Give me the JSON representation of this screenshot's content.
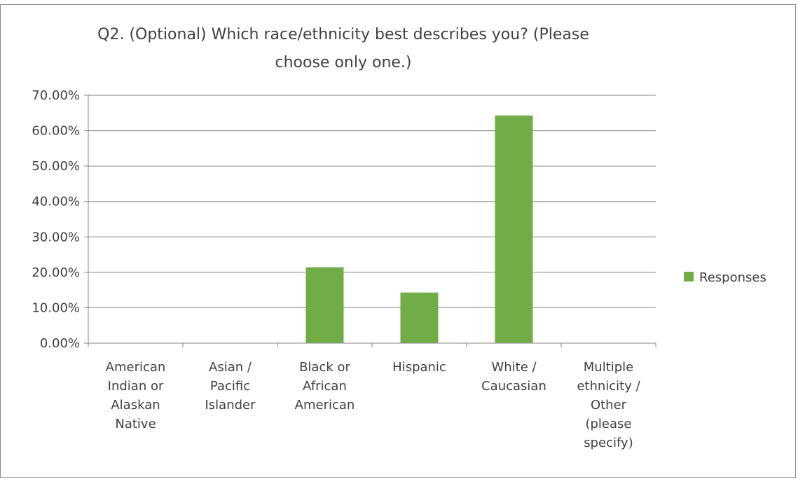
{
  "chart_data": {
    "type": "bar",
    "title": "Q2. (Optional) Which race/ethnicity best describes you? (Please choose only one.)",
    "title_lines": [
      "Q2. (Optional) Which race/ethnicity best describes you? (Please",
      "choose only one.)"
    ],
    "categories": [
      "American Indian or Alaskan Native",
      "Asian / Pacific Islander",
      "Black or African American",
      "Hispanic",
      "White / Caucasian",
      "Multiple ethnicity / Other (please specify)"
    ],
    "category_lines": [
      [
        "American",
        "Indian or",
        "Alaskan",
        "Native"
      ],
      [
        "Asian /",
        "Pacific",
        "Islander"
      ],
      [
        "Black or",
        "African",
        "American"
      ],
      [
        "Hispanic"
      ],
      [
        "White /",
        "Caucasian"
      ],
      [
        "Multiple",
        "ethnicity /",
        "Other",
        "(please",
        "specify)"
      ]
    ],
    "series": [
      {
        "name": "Responses",
        "values": [
          0,
          0,
          21.43,
          14.29,
          64.29,
          0
        ]
      }
    ],
    "ylim": [
      0,
      70
    ],
    "yticks": [
      0,
      10,
      20,
      30,
      40,
      50,
      60,
      70
    ],
    "ytick_labels": [
      "0.00%",
      "10.00%",
      "20.00%",
      "30.00%",
      "40.00%",
      "50.00%",
      "60.00%",
      "70.00%"
    ],
    "xlabel": "",
    "ylabel": "",
    "grid": true,
    "legend_position": "right",
    "colors": {
      "bar": "#70ad47",
      "grid": "#868686",
      "text": "#404040"
    }
  }
}
